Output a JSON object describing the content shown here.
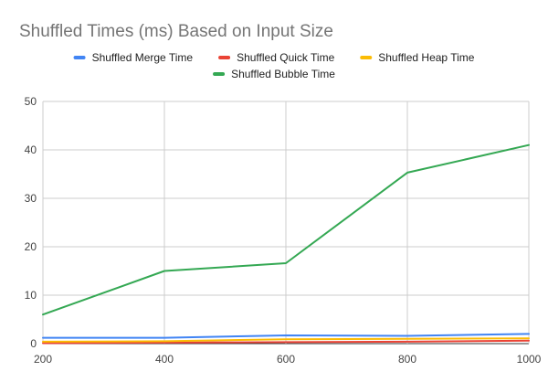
{
  "chart_data": {
    "type": "line",
    "title": "Shuffled Times (ms) Based on Input Size",
    "x": [
      200,
      400,
      600,
      800,
      1000
    ],
    "xlim": [
      200,
      1000
    ],
    "ylim": [
      0,
      50
    ],
    "yticks": [
      0,
      10,
      20,
      30,
      40,
      50
    ],
    "grid": true,
    "legend_position": "top",
    "series": [
      {
        "name": "Shuffled Merge Time",
        "color": "#4285f4",
        "values": [
          1.2,
          1.2,
          1.7,
          1.6,
          2.0
        ]
      },
      {
        "name": "Shuffled Quick Time",
        "color": "#ea4335",
        "values": [
          0.1,
          0.2,
          0.3,
          0.4,
          0.6
        ]
      },
      {
        "name": "Shuffled Heap Time",
        "color": "#fbbc04",
        "values": [
          0.4,
          0.5,
          0.9,
          1.0,
          1.1
        ]
      },
      {
        "name": "Shuffled Bubble Time",
        "color": "#34a853",
        "values": [
          6.0,
          15.0,
          16.6,
          35.3,
          41.0
        ]
      }
    ]
  }
}
